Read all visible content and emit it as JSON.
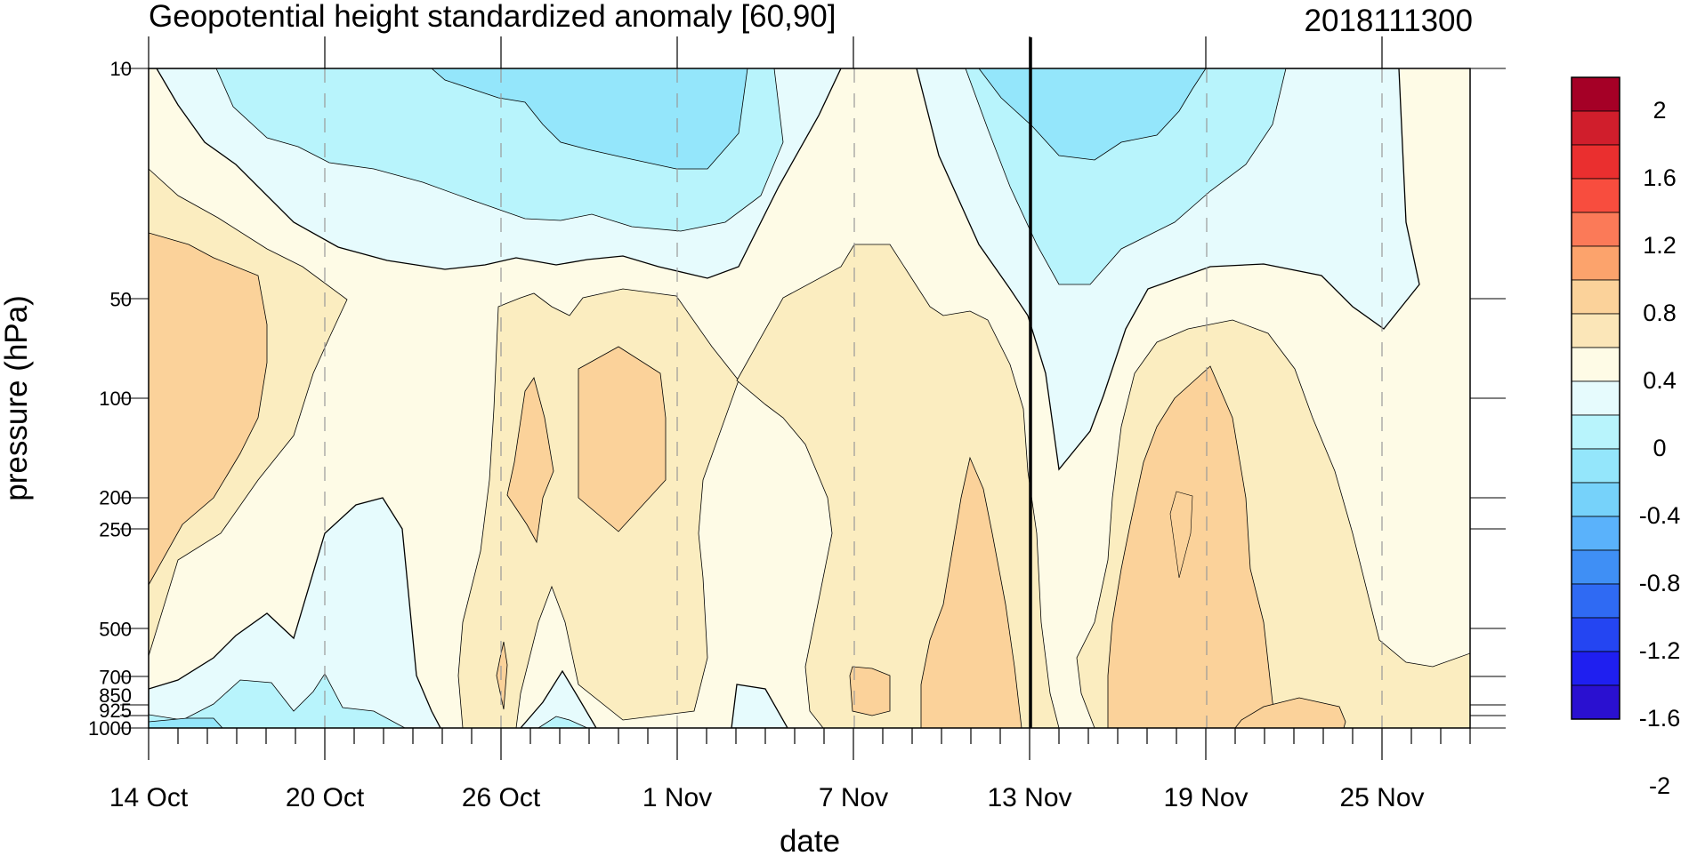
{
  "chart_data": {
    "type": "heatmap",
    "title": "Geopotential height standardized anomaly [60,90]",
    "date_stamp": "2018111300",
    "xlabel": "date",
    "ylabel": "pressure (hPa)",
    "x_ticks": [
      "14 Oct",
      "20 Oct",
      "26 Oct",
      "1 Nov",
      "7 Nov",
      "13 Nov",
      "19 Nov",
      "25 Nov"
    ],
    "x_tick_day": [
      0,
      6,
      12,
      18,
      24,
      30,
      36,
      42
    ],
    "x_range_days": [
      0,
      45
    ],
    "y_ticks": [
      "10",
      "50",
      "100",
      "200",
      "250",
      "500",
      "700",
      "850",
      "925",
      "1000"
    ],
    "y_levels": [
      10,
      50,
      100,
      200,
      250,
      500,
      700,
      850,
      925,
      1000
    ],
    "y_scale": "log-pressure",
    "y_range": [
      1000,
      10
    ],
    "current_date_line_day": 30,
    "colorbar_labels": [
      "2",
      "1.6",
      "1.2",
      "0.8",
      "0.4",
      "0",
      "-0.4",
      "-0.8",
      "-1.2",
      "-1.6",
      "-2"
    ],
    "colorbar_values": [
      2,
      1.6,
      1.2,
      0.8,
      0.4,
      0,
      -0.4,
      -0.8,
      -1.2,
      -1.6,
      -2
    ],
    "colorbar_colors": [
      "#a50026",
      "#d01e2c",
      "#ea2f2f",
      "#f84d3e",
      "#fb7a58",
      "#fca36c",
      "#fbd29a",
      "#fbe6b8",
      "#fefbe6",
      "#e6fbfd",
      "#b8f4fc",
      "#94e6fb",
      "#76d2fa",
      "#5ab2fb",
      "#3f8ff5",
      "#2f6af3",
      "#2445f2",
      "#1f1ff0",
      "#2a10d0"
    ],
    "bands": [
      {
        "value": "below -0.4",
        "color": "#94e6fb"
      },
      {
        "value": "-0.4 to -0.2",
        "color": "#b8f4fc"
      },
      {
        "value": "-0.2 to 0",
        "color": "#e6fbfd"
      },
      {
        "value": "0 to 0.2",
        "color": "#fefbe6"
      },
      {
        "value": "0.2 to 0.4",
        "color": "#fbedc0"
      },
      {
        "value": "0.4 to 0.6",
        "color": "#fbd29a"
      }
    ]
  }
}
